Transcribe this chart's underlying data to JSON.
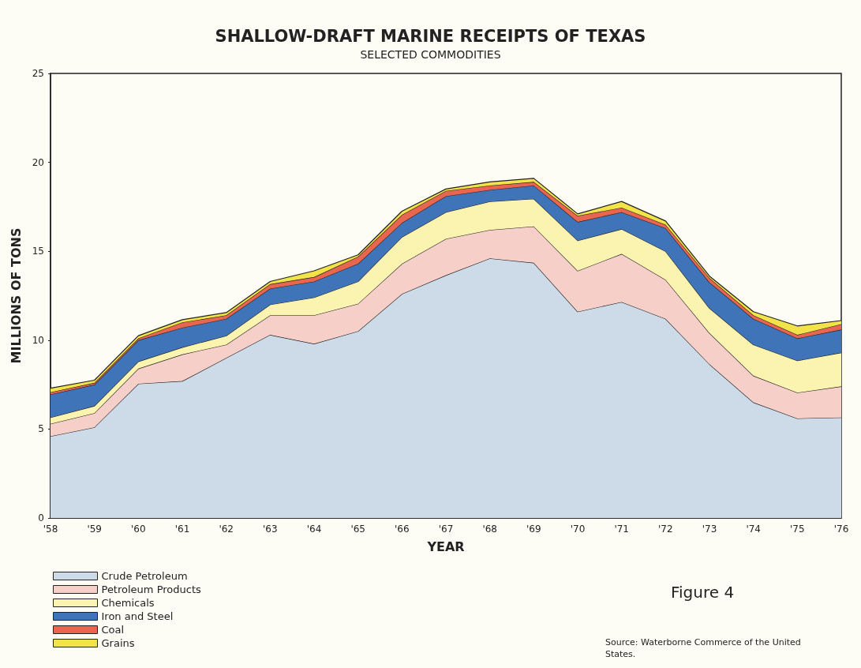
{
  "chart_data": {
    "type": "area",
    "stacked": true,
    "title": "SHALLOW-DRAFT MARINE RECEIPTS OF TEXAS",
    "subtitle": "SELECTED COMMODITIES",
    "xlabel": "YEAR",
    "ylabel": "MILLIONS OF TONS",
    "categories": [
      "'58",
      "'59",
      "'60",
      "'61",
      "'62",
      "'63",
      "'64",
      "'65",
      "'66",
      "'67",
      "'68",
      "'69",
      "'70",
      "'71",
      "'72",
      "'73",
      "'74",
      "'75",
      "'76"
    ],
    "series": [
      {
        "name": "Crude Petroleum",
        "color": "#cddbe8",
        "values": [
          4.6,
          5.1,
          7.55,
          7.7,
          9.0,
          10.3,
          9.8,
          10.5,
          12.6,
          13.65,
          14.6,
          14.35,
          11.6,
          12.15,
          11.2,
          8.65,
          6.5,
          5.6,
          5.65
        ]
      },
      {
        "name": "Petroleum Products",
        "color": "#f6cfc8",
        "values": [
          0.7,
          0.8,
          0.85,
          1.5,
          0.75,
          1.1,
          1.6,
          1.55,
          1.7,
          2.05,
          1.6,
          2.05,
          2.3,
          2.7,
          2.2,
          1.75,
          1.5,
          1.45,
          1.75
        ]
      },
      {
        "name": "Chemicals",
        "color": "#fbf3b0",
        "values": [
          0.35,
          0.4,
          0.4,
          0.4,
          0.5,
          0.6,
          1.0,
          1.25,
          1.5,
          1.5,
          1.6,
          1.55,
          1.7,
          1.4,
          1.6,
          1.4,
          1.75,
          1.8,
          1.9
        ]
      },
      {
        "name": "Iron and Steel",
        "color": "#3f74b8",
        "values": [
          1.3,
          1.2,
          1.2,
          1.1,
          0.95,
          0.9,
          0.9,
          1.0,
          0.8,
          0.9,
          0.65,
          0.75,
          1.05,
          0.95,
          1.3,
          1.45,
          1.45,
          1.25,
          1.3
        ]
      },
      {
        "name": "Coal",
        "color": "#e8654f",
        "values": [
          0.12,
          0.1,
          0.1,
          0.3,
          0.2,
          0.25,
          0.25,
          0.4,
          0.45,
          0.3,
          0.25,
          0.2,
          0.35,
          0.25,
          0.2,
          0.25,
          0.2,
          0.2,
          0.3
        ]
      },
      {
        "name": "Grains",
        "color": "#f3e34a",
        "values": [
          0.23,
          0.15,
          0.15,
          0.15,
          0.15,
          0.15,
          0.35,
          0.1,
          0.2,
          0.1,
          0.2,
          0.2,
          0.1,
          0.35,
          0.2,
          0.1,
          0.2,
          0.5,
          0.2
        ]
      }
    ],
    "ylim": [
      0,
      25
    ],
    "yticks": [
      0,
      5,
      10,
      15,
      20,
      25
    ],
    "grid": false,
    "legend": "bottom left",
    "marker": "none",
    "line_style": "solid",
    "annotations": [
      "Figure 4",
      "Source: Waterborne Commerce of the United States."
    ]
  }
}
